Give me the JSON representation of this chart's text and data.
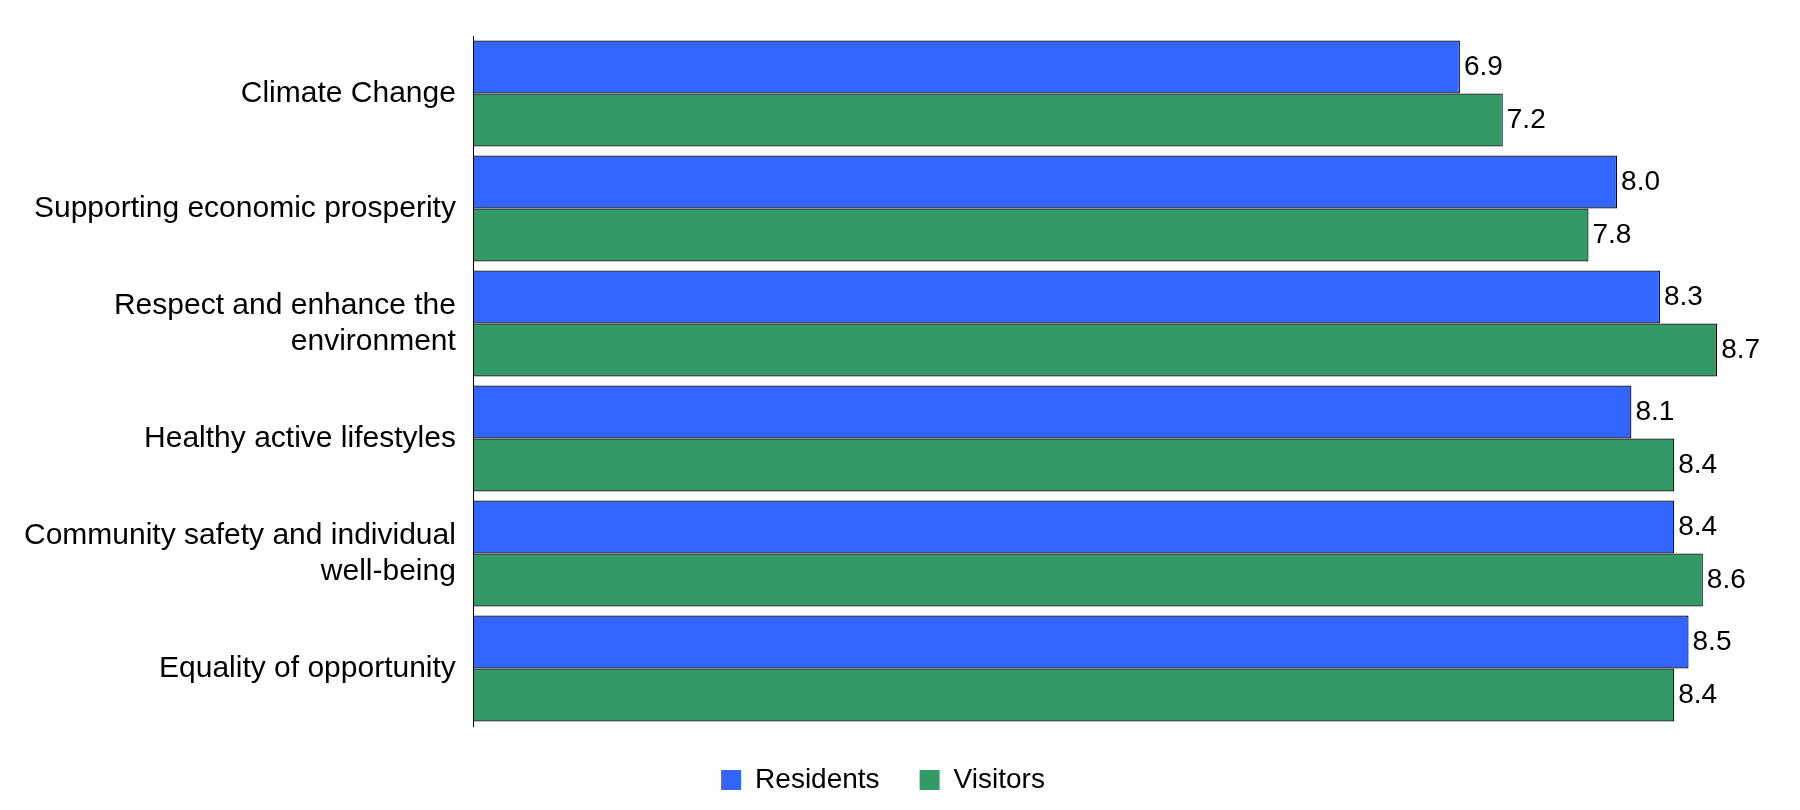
{
  "chart_data": {
    "type": "bar",
    "orientation": "horizontal",
    "categories": [
      "Climate Change",
      "Supporting economic prosperity",
      "Respect and enhance the environment",
      "Healthy active lifestyles",
      "Community safety and individual well-being",
      "Equality of opportunity"
    ],
    "series": [
      {
        "name": "Residents",
        "color": "#3366ff",
        "values": [
          6.9,
          8.0,
          8.3,
          8.1,
          8.4,
          8.5
        ],
        "value_labels": [
          "6.9",
          "8.0",
          "8.3",
          "8.1",
          "8.4",
          "8.5"
        ]
      },
      {
        "name": "Visitors",
        "color": "#339966",
        "values": [
          7.2,
          7.8,
          8.7,
          8.4,
          8.6,
          8.4
        ],
        "value_labels": [
          "7.2",
          "7.8",
          "8.7",
          "8.4",
          "8.6",
          "8.4"
        ]
      }
    ],
    "legend": "bottom"
  }
}
